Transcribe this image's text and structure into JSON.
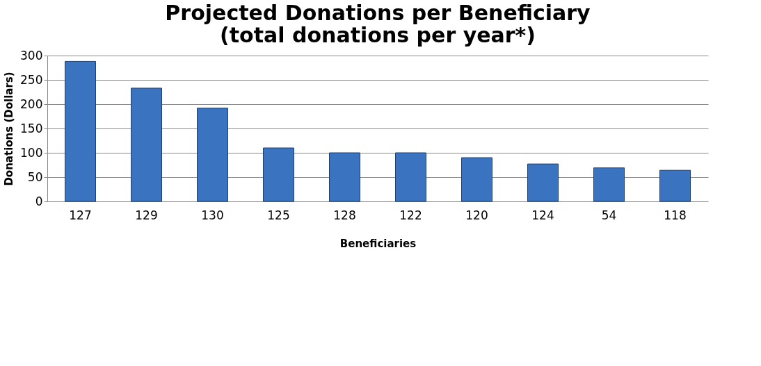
{
  "chart_data": {
    "type": "bar",
    "title": [
      "Projected Donations per Beneficiary",
      "(total donations per year*)"
    ],
    "xlabel": "Beneficiaries",
    "ylabel": "Donations (Dollars)",
    "categories": [
      "127",
      "129",
      "130",
      "125",
      "128",
      "122",
      "120",
      "124",
      "54",
      "118"
    ],
    "values": [
      288,
      233,
      192,
      110,
      100,
      100,
      90,
      77,
      69,
      64
    ],
    "color": "#3a73c0",
    "ylim": [
      0,
      300
    ],
    "yticks": [
      0,
      50,
      100,
      150,
      200,
      250,
      300
    ],
    "grid": "y"
  }
}
